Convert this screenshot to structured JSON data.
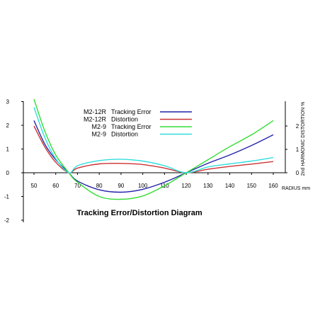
{
  "chart_data": {
    "type": "line",
    "title": "Tracking Error/Distortion Diagram",
    "xlabel": "RADIUS mm",
    "ylabel_left": "",
    "ylabel_right": "2nd HARMONIC DISTORTION %",
    "xlim": [
      45,
      165
    ],
    "ylim_left": [
      -2,
      3
    ],
    "ylim_right": [
      0,
      3
    ],
    "x_ticks": [
      50,
      60,
      70,
      80,
      90,
      100,
      110,
      120,
      130,
      140,
      150,
      160
    ],
    "y_ticks_left": [
      -2,
      -1,
      0,
      1,
      2,
      3
    ],
    "y_ticks_right": [
      0,
      1,
      2
    ],
    "grid": false,
    "legend_position": "top-center",
    "series": [
      {
        "model": "M2-12R",
        "name": "Tracking Error",
        "color": "#2222aa",
        "axis": "left",
        "x": [
          50,
          55,
          60,
          66,
          70,
          80,
          90,
          100,
          110,
          120,
          130,
          140,
          150,
          160
        ],
        "y": [
          2.2,
          1.2,
          0.55,
          0.0,
          -0.35,
          -0.72,
          -0.82,
          -0.7,
          -0.4,
          0.0,
          0.4,
          0.75,
          1.15,
          1.6
        ]
      },
      {
        "model": "M2-12R",
        "name": "Distortion",
        "color": "#cc3333",
        "axis": "right",
        "x": [
          50,
          55,
          60,
          66,
          70,
          80,
          90,
          100,
          110,
          120,
          130,
          140,
          150,
          160
        ],
        "y": [
          2.0,
          1.1,
          0.45,
          0.0,
          0.2,
          0.38,
          0.4,
          0.35,
          0.2,
          0.0,
          0.15,
          0.27,
          0.37,
          0.48
        ]
      },
      {
        "model": "M2-9",
        "name": "Tracking Error",
        "color": "#33dd33",
        "axis": "left",
        "x": [
          50,
          55,
          60,
          66,
          70,
          80,
          90,
          100,
          110,
          120,
          130,
          140,
          150,
          160
        ],
        "y": [
          3.1,
          1.75,
          0.75,
          0.0,
          -0.4,
          -1.0,
          -1.12,
          -0.98,
          -0.55,
          0.0,
          0.55,
          1.1,
          1.6,
          2.2
        ]
      },
      {
        "model": "M2-9",
        "name": "Distortion",
        "color": "#33dddd",
        "axis": "right",
        "x": [
          50,
          55,
          60,
          66,
          70,
          80,
          90,
          100,
          110,
          120,
          130,
          140,
          150,
          160
        ],
        "y": [
          2.8,
          1.5,
          0.6,
          0.0,
          0.3,
          0.52,
          0.58,
          0.5,
          0.3,
          0.0,
          0.25,
          0.38,
          0.5,
          0.65
        ]
      }
    ]
  }
}
